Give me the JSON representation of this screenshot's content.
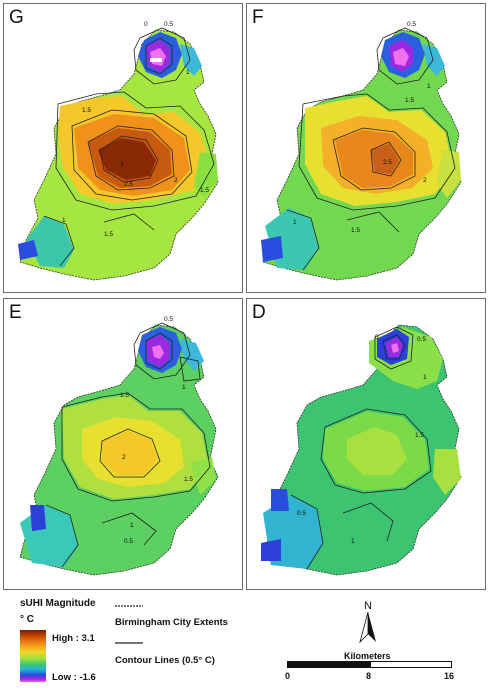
{
  "panels": [
    {
      "label": "G",
      "contour_labels": [
        "0",
        "0.5",
        "1",
        "1.5",
        "2",
        "2.5",
        "3",
        "1.5",
        "1.5",
        "1"
      ]
    },
    {
      "label": "F",
      "contour_labels": [
        "0.5",
        "1",
        "1.5",
        "2",
        "2.5",
        "1.5",
        "1"
      ]
    },
    {
      "label": "E",
      "contour_labels": [
        "0.5",
        "1",
        "1.5",
        "2",
        "1.5",
        "1",
        "0.5"
      ]
    },
    {
      "label": "D",
      "contour_labels": [
        "0",
        "0.5",
        "1",
        "1.5",
        "0.5",
        "1"
      ]
    }
  ],
  "legend": {
    "title": "sUHI Magnitude",
    "unit": "° C",
    "high_label": "High : 3.1",
    "low_label": "Low : -1.6",
    "extent_label": "Birmingham City Extents",
    "contour_label": "Contour Lines (0.5° C)",
    "colors": [
      "#7a1a00",
      "#c84a00",
      "#f08a1a",
      "#f4d22a",
      "#9ee040",
      "#3cc86a",
      "#20b4d8",
      "#2a4de0",
      "#9a2ae0",
      "#f060f0"
    ]
  },
  "north_arrow": {
    "label": "N"
  },
  "scale_bar": {
    "title": "Kilometers",
    "ticks": [
      "0",
      "8",
      "16"
    ]
  }
}
